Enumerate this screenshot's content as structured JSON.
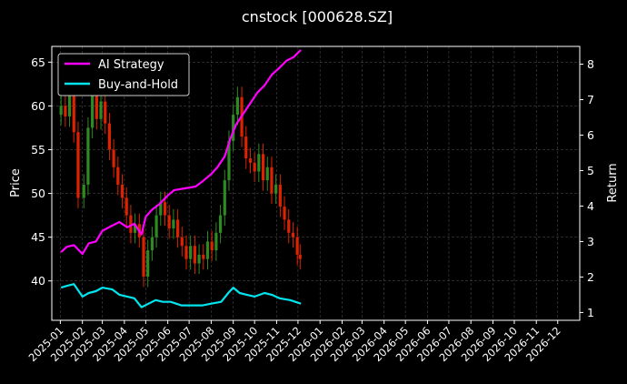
{
  "chart_data": {
    "type": "line",
    "title": "cnstock [000628.SZ]",
    "ylabel_left": "Price",
    "ylabel_right": "Return",
    "xlabel": "",
    "x_ticks": [
      "2025-01",
      "2025-02",
      "2025-03",
      "2025-04",
      "2025-05",
      "2025-06",
      "2025-07",
      "2025-08",
      "2025-09",
      "2025-10",
      "2025-11",
      "2025-12",
      "2026-01",
      "2026-02",
      "2026-03",
      "2026-04",
      "2026-05",
      "2026-06",
      "2026-07",
      "2026-08",
      "2026-09",
      "2026-10",
      "2026-11",
      "2026-12"
    ],
    "x_range": [
      "2024-12-20",
      "2027-01-01"
    ],
    "y_left_ticks": [
      40,
      45,
      50,
      55,
      60,
      65
    ],
    "y_left_range": [
      35.5,
      66.8
    ],
    "y_right_ticks": [
      1,
      2,
      3,
      4,
      5,
      6,
      7,
      8
    ],
    "y_right_range": [
      0.78,
      8.5
    ],
    "grid": true,
    "legend_position": "upper-left",
    "colors": {
      "background": "#000000",
      "up": "#2e8b22",
      "down": "#dd2200",
      "ai": "#ff00ff",
      "bh": "#00e5ee",
      "grid": "#444444"
    },
    "price_candles_close": [
      {
        "x": "2025-01-02",
        "close": 60.0
      },
      {
        "x": "2025-01-08",
        "close": 58.8
      },
      {
        "x": "2025-01-14",
        "close": 62.5
      },
      {
        "x": "2025-01-20",
        "close": 57.0
      },
      {
        "x": "2025-01-26",
        "close": 49.5
      },
      {
        "x": "2025-02-03",
        "close": 51.0
      },
      {
        "x": "2025-02-09",
        "close": 57.5
      },
      {
        "x": "2025-02-15",
        "close": 61.5
      },
      {
        "x": "2025-02-21",
        "close": 58.5
      },
      {
        "x": "2025-02-27",
        "close": 60.5
      },
      {
        "x": "2025-03-05",
        "close": 58.0
      },
      {
        "x": "2025-03-11",
        "close": 55.0
      },
      {
        "x": "2025-03-17",
        "close": 53.0
      },
      {
        "x": "2025-03-23",
        "close": 51.0
      },
      {
        "x": "2025-03-29",
        "close": 49.5
      },
      {
        "x": "2025-04-04",
        "close": 47.5
      },
      {
        "x": "2025-04-10",
        "close": 45.5
      },
      {
        "x": "2025-04-16",
        "close": 46.5
      },
      {
        "x": "2025-04-22",
        "close": 45.0
      },
      {
        "x": "2025-04-28",
        "close": 40.5
      },
      {
        "x": "2025-05-04",
        "close": 43.5
      },
      {
        "x": "2025-05-10",
        "close": 45.0
      },
      {
        "x": "2025-05-16",
        "close": 47.5
      },
      {
        "x": "2025-05-22",
        "close": 49.0
      },
      {
        "x": "2025-05-28",
        "close": 47.5
      },
      {
        "x": "2025-06-03",
        "close": 46.0
      },
      {
        "x": "2025-06-09",
        "close": 47.0
      },
      {
        "x": "2025-06-15",
        "close": 45.0
      },
      {
        "x": "2025-06-21",
        "close": 44.0
      },
      {
        "x": "2025-06-27",
        "close": 42.5
      },
      {
        "x": "2025-07-03",
        "close": 44.0
      },
      {
        "x": "2025-07-09",
        "close": 42.0
      },
      {
        "x": "2025-07-15",
        "close": 43.0
      },
      {
        "x": "2025-07-21",
        "close": 42.5
      },
      {
        "x": "2025-07-27",
        "close": 44.5
      },
      {
        "x": "2025-08-02",
        "close": 43.5
      },
      {
        "x": "2025-08-08",
        "close": 45.5
      },
      {
        "x": "2025-08-14",
        "close": 47.5
      },
      {
        "x": "2025-08-20",
        "close": 51.5
      },
      {
        "x": "2025-08-26",
        "close": 56.0
      },
      {
        "x": "2025-09-01",
        "close": 59.0
      },
      {
        "x": "2025-09-07",
        "close": 61.0
      },
      {
        "x": "2025-09-13",
        "close": 56.5
      },
      {
        "x": "2025-09-19",
        "close": 54.0
      },
      {
        "x": "2025-09-25",
        "close": 53.5
      },
      {
        "x": "2025-10-01",
        "close": 52.5
      },
      {
        "x": "2025-10-07",
        "close": 54.5
      },
      {
        "x": "2025-10-13",
        "close": 51.5
      },
      {
        "x": "2025-10-19",
        "close": 53.0
      },
      {
        "x": "2025-10-25",
        "close": 50.0
      },
      {
        "x": "2025-10-31",
        "close": 51.0
      },
      {
        "x": "2025-11-06",
        "close": 48.5
      },
      {
        "x": "2025-11-12",
        "close": 47.0
      },
      {
        "x": "2025-11-18",
        "close": 45.5
      },
      {
        "x": "2025-11-24",
        "close": 45.0
      },
      {
        "x": "2025-11-30",
        "close": 43.0
      },
      {
        "x": "2025-12-04",
        "close": 42.5
      }
    ],
    "series": [
      {
        "name": "AI Strategy",
        "points": [
          {
            "x": "2025-01-02",
            "y": 2.7
          },
          {
            "x": "2025-01-10",
            "y": 2.85
          },
          {
            "x": "2025-01-20",
            "y": 2.9
          },
          {
            "x": "2025-02-01",
            "y": 2.65
          },
          {
            "x": "2025-02-10",
            "y": 2.95
          },
          {
            "x": "2025-02-20",
            "y": 3.0
          },
          {
            "x": "2025-03-01",
            "y": 3.3
          },
          {
            "x": "2025-03-15",
            "y": 3.45
          },
          {
            "x": "2025-03-25",
            "y": 3.55
          },
          {
            "x": "2025-04-05",
            "y": 3.4
          },
          {
            "x": "2025-04-15",
            "y": 3.5
          },
          {
            "x": "2025-04-25",
            "y": 3.2
          },
          {
            "x": "2025-05-01",
            "y": 3.7
          },
          {
            "x": "2025-05-10",
            "y": 3.9
          },
          {
            "x": "2025-05-20",
            "y": 4.05
          },
          {
            "x": "2025-06-01",
            "y": 4.3
          },
          {
            "x": "2025-06-10",
            "y": 4.45
          },
          {
            "x": "2025-06-25",
            "y": 4.5
          },
          {
            "x": "2025-07-10",
            "y": 4.55
          },
          {
            "x": "2025-07-20",
            "y": 4.7
          },
          {
            "x": "2025-08-01",
            "y": 4.9
          },
          {
            "x": "2025-08-10",
            "y": 5.1
          },
          {
            "x": "2025-08-20",
            "y": 5.4
          },
          {
            "x": "2025-08-28",
            "y": 5.9
          },
          {
            "x": "2025-09-05",
            "y": 6.3
          },
          {
            "x": "2025-09-15",
            "y": 6.6
          },
          {
            "x": "2025-09-25",
            "y": 6.9
          },
          {
            "x": "2025-10-05",
            "y": 7.2
          },
          {
            "x": "2025-10-15",
            "y": 7.4
          },
          {
            "x": "2025-10-25",
            "y": 7.7
          },
          {
            "x": "2025-11-05",
            "y": 7.9
          },
          {
            "x": "2025-11-15",
            "y": 8.1
          },
          {
            "x": "2025-11-25",
            "y": 8.2
          },
          {
            "x": "2025-12-05",
            "y": 8.4
          }
        ]
      },
      {
        "name": "Buy-and-Hold",
        "points": [
          {
            "x": "2025-01-02",
            "y": 1.7
          },
          {
            "x": "2025-01-10",
            "y": 1.75
          },
          {
            "x": "2025-01-20",
            "y": 1.8
          },
          {
            "x": "2025-02-01",
            "y": 1.45
          },
          {
            "x": "2025-02-10",
            "y": 1.55
          },
          {
            "x": "2025-02-20",
            "y": 1.6
          },
          {
            "x": "2025-03-01",
            "y": 1.7
          },
          {
            "x": "2025-03-15",
            "y": 1.65
          },
          {
            "x": "2025-03-25",
            "y": 1.5
          },
          {
            "x": "2025-04-05",
            "y": 1.45
          },
          {
            "x": "2025-04-15",
            "y": 1.4
          },
          {
            "x": "2025-04-25",
            "y": 1.15
          },
          {
            "x": "2025-05-05",
            "y": 1.25
          },
          {
            "x": "2025-05-15",
            "y": 1.35
          },
          {
            "x": "2025-05-25",
            "y": 1.3
          },
          {
            "x": "2025-06-05",
            "y": 1.3
          },
          {
            "x": "2025-06-20",
            "y": 1.2
          },
          {
            "x": "2025-07-05",
            "y": 1.2
          },
          {
            "x": "2025-07-20",
            "y": 1.2
          },
          {
            "x": "2025-08-01",
            "y": 1.25
          },
          {
            "x": "2025-08-15",
            "y": 1.3
          },
          {
            "x": "2025-08-25",
            "y": 1.55
          },
          {
            "x": "2025-09-01",
            "y": 1.7
          },
          {
            "x": "2025-09-10",
            "y": 1.55
          },
          {
            "x": "2025-09-20",
            "y": 1.5
          },
          {
            "x": "2025-10-01",
            "y": 1.45
          },
          {
            "x": "2025-10-15",
            "y": 1.55
          },
          {
            "x": "2025-10-25",
            "y": 1.5
          },
          {
            "x": "2025-11-05",
            "y": 1.4
          },
          {
            "x": "2025-11-20",
            "y": 1.35
          },
          {
            "x": "2025-12-05",
            "y": 1.25
          }
        ]
      }
    ]
  }
}
